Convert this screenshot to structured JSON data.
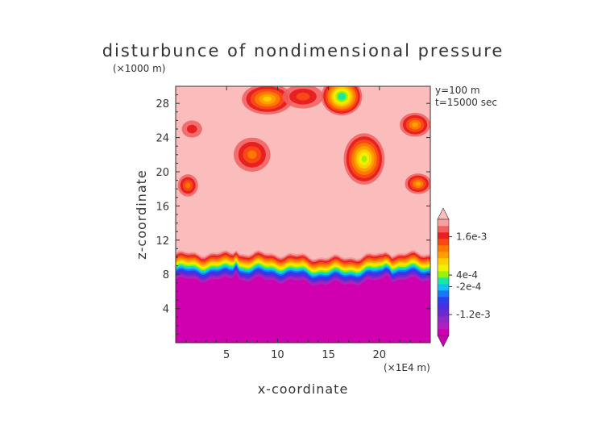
{
  "chart_data": {
    "type": "heatmap",
    "title": "disturbunce of nondimensional pressure",
    "xlabel": "x-coordinate",
    "ylabel": "z-coordinate",
    "x_unit": "(×1E4 m)",
    "y_unit": "(×1000 m)",
    "annotations": [
      "y=100 m",
      "t=15000 sec"
    ],
    "xlim": [
      0,
      25
    ],
    "ylim": [
      0,
      30
    ],
    "x_ticks": [
      5,
      10,
      15,
      20
    ],
    "y_ticks": [
      4,
      8,
      12,
      16,
      20,
      24,
      28
    ],
    "x_tick_labels": [
      "5",
      "10",
      "15",
      "20"
    ],
    "y_tick_labels": [
      "4",
      "8",
      "12",
      "16",
      "20",
      "24",
      "28"
    ],
    "colorbar": {
      "labels": [
        {
          "value": 0.0016,
          "text": "1.6e-3"
        },
        {
          "value": 0.0004,
          "text": "4e-4"
        },
        {
          "value": -0.0002,
          "text": "-2e-4"
        },
        {
          "value": -0.0012,
          "text": "-1.2e-3"
        }
      ],
      "colors": [
        "#d000b0",
        "#b020c0",
        "#9028c8",
        "#6a2ad0",
        "#4a2ee0",
        "#2a40f0",
        "#1878f8",
        "#12c0f0",
        "#18e8a0",
        "#a0f000",
        "#f0f000",
        "#ffd000",
        "#ffa000",
        "#ff7800",
        "#f84818",
        "#e82020",
        "#f06060",
        "#f8a0a0"
      ],
      "background": "#fbbcbc",
      "levels_between_labels": 3
    },
    "field": {
      "surface_layer": {
        "color": "#c81ca8",
        "top_base": 7.2
      },
      "transition_band_top": 10.5,
      "upper_patches": [
        {
          "cx": 1.2,
          "cz": 18.4,
          "rx": 1.0,
          "rz": 1.3,
          "peak": 0.35
        },
        {
          "cx": 1.6,
          "cz": 25.0,
          "rx": 1.0,
          "rz": 1.0,
          "peak": 0.15
        },
        {
          "cx": 7.5,
          "cz": 22.0,
          "rx": 1.8,
          "rz": 2.0,
          "peak": 0.4
        },
        {
          "cx": 9.0,
          "cz": 28.5,
          "rx": 2.5,
          "rz": 1.8,
          "peak": 0.55
        },
        {
          "cx": 12.5,
          "cz": 28.8,
          "rx": 2.0,
          "rz": 1.4,
          "peak": 0.3
        },
        {
          "cx": 16.3,
          "cz": 28.8,
          "rx": 2.0,
          "rz": 2.2,
          "peak": 1.0
        },
        {
          "cx": 18.5,
          "cz": 21.5,
          "rx": 2.0,
          "rz": 3.0,
          "peak": 0.8
        },
        {
          "cx": 23.8,
          "cz": 18.6,
          "rx": 1.3,
          "rz": 1.2,
          "peak": 0.5
        },
        {
          "cx": 23.5,
          "cz": 25.5,
          "rx": 1.5,
          "rz": 1.4,
          "peak": 0.45
        }
      ]
    }
  }
}
